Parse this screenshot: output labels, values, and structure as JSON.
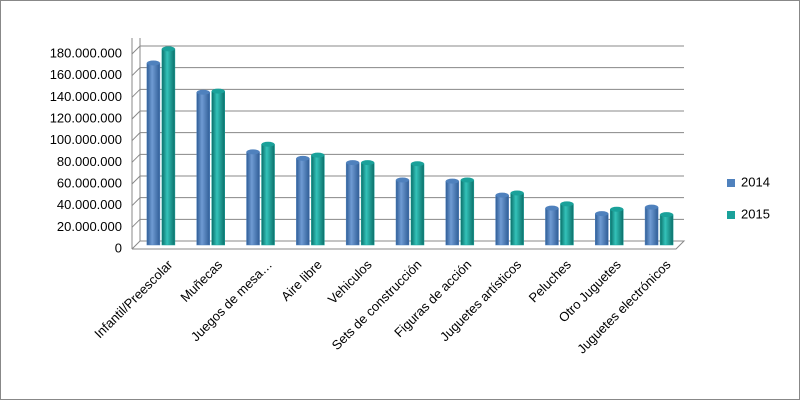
{
  "chart_data": {
    "type": "bar",
    "categories": [
      "Infantil/Preescolar",
      "Muñecas",
      "Juegos de mesa…",
      "Aire libre",
      "Vehiculos",
      "Sets de construcción",
      "Figuras de acción",
      "Juguetes artísticos",
      "Peluches",
      "Otro Juguetes",
      "Juguetes electrónicos"
    ],
    "series": [
      {
        "name": "2014",
        "color": "#4f81bd",
        "values": [
          168000000,
          141000000,
          86000000,
          80000000,
          76000000,
          60000000,
          59000000,
          46000000,
          34000000,
          29000000,
          35000000
        ]
      },
      {
        "name": "2015",
        "color": "#1aa19a",
        "values": [
          181000000,
          142000000,
          93000000,
          83000000,
          76000000,
          75000000,
          60000000,
          48000000,
          38000000,
          33000000,
          28000000
        ]
      }
    ],
    "ylim": [
      0,
      180000000
    ],
    "yticks": [
      0,
      {
        "value": 20000000,
        "label": "20.000.000"
      },
      {
        "value": 40000000,
        "label": "40.000.000"
      },
      {
        "value": 60000000,
        "label": "60.000.000"
      },
      {
        "value": 80000000,
        "label": "80.000.000"
      },
      {
        "value": 100000000,
        "label": "100.000.000"
      },
      {
        "value": 120000000,
        "label": "120.000.000"
      },
      {
        "value": 140000000,
        "label": "140.000.000"
      },
      {
        "value": 160000000,
        "label": "160.000.000"
      },
      {
        "value": 180000000,
        "label": "180.000.000"
      }
    ],
    "grid": true,
    "legend": "right"
  }
}
